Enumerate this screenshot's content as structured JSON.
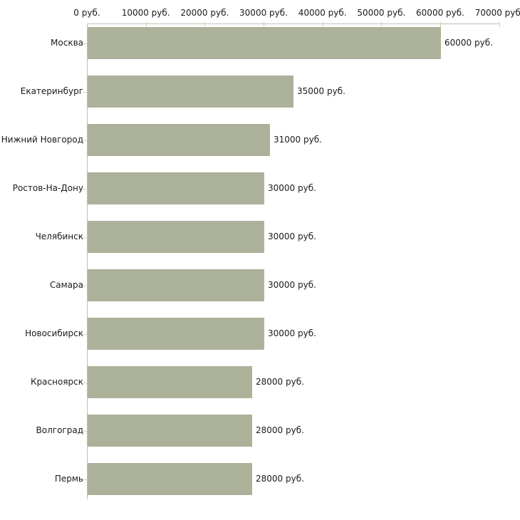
{
  "chart_data": {
    "type": "bar",
    "orientation": "horizontal",
    "title": "",
    "xlabel": "",
    "ylabel": "",
    "categories": [
      "Москва",
      "Екатеринбург",
      "Нижний Новгород",
      "Ростов-На-Дону",
      "Челябинск",
      "Самара",
      "Новосибирск",
      "Красноярск",
      "Волгоград",
      "Пермь"
    ],
    "values": [
      60000,
      35000,
      31000,
      30000,
      30000,
      30000,
      30000,
      28000,
      28000,
      28000
    ],
    "value_labels": [
      "60000 руб.",
      "35000 руб.",
      "31000 руб.",
      "30000 руб.",
      "30000 руб.",
      "30000 руб.",
      "30000 руб.",
      "28000 руб.",
      "28000 руб.",
      "28000 руб."
    ],
    "x_ticks": [
      0,
      10000,
      20000,
      30000,
      40000,
      50000,
      60000,
      70000
    ],
    "x_tick_labels": [
      "0 руб.",
      "10000 руб.",
      "20000 руб.",
      "30000 руб.",
      "40000 руб.",
      "50000 руб.",
      "60000 руб.",
      "70000 руб."
    ],
    "xlim": [
      0,
      70000
    ],
    "legend": null,
    "grid": false,
    "colors": {
      "bar_fill": "#acb29a",
      "axis_line": "#bdc0b2",
      "tick_mark": "#d3d7b5",
      "text": "#1a1a1a",
      "background": "#ffffff"
    }
  }
}
